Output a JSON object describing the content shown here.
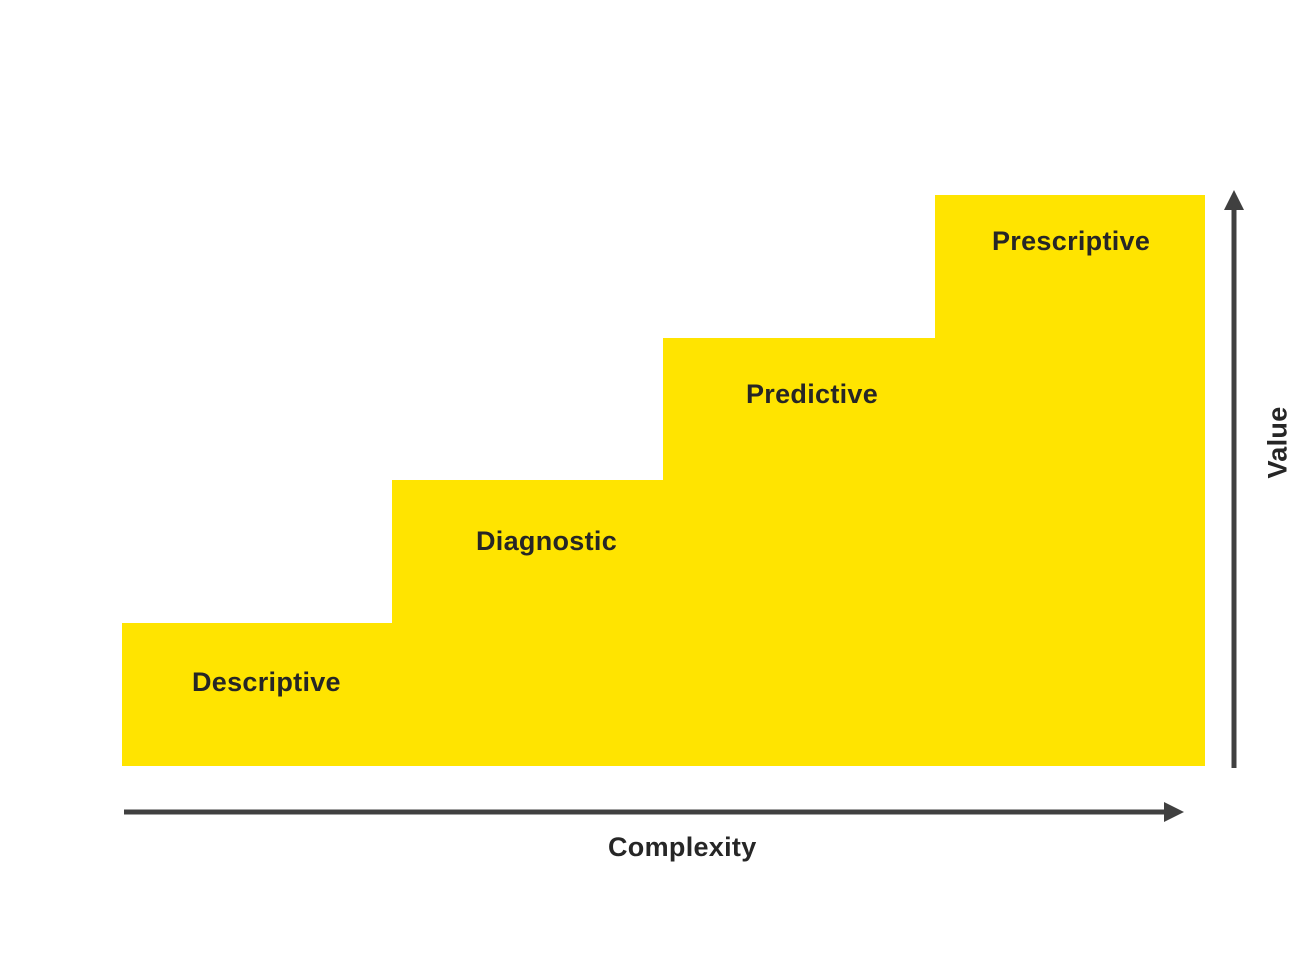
{
  "diagram": {
    "steps": [
      {
        "label": "Descriptive"
      },
      {
        "label": "Diagnostic"
      },
      {
        "label": "Predictive"
      },
      {
        "label": "Prescriptive"
      }
    ],
    "x_axis_label": "Complexity",
    "y_axis_label": "Value",
    "colors": {
      "step_fill": "#FFE400",
      "axis": "#404040",
      "text": "#262626",
      "background": "#FFFFFF"
    }
  }
}
